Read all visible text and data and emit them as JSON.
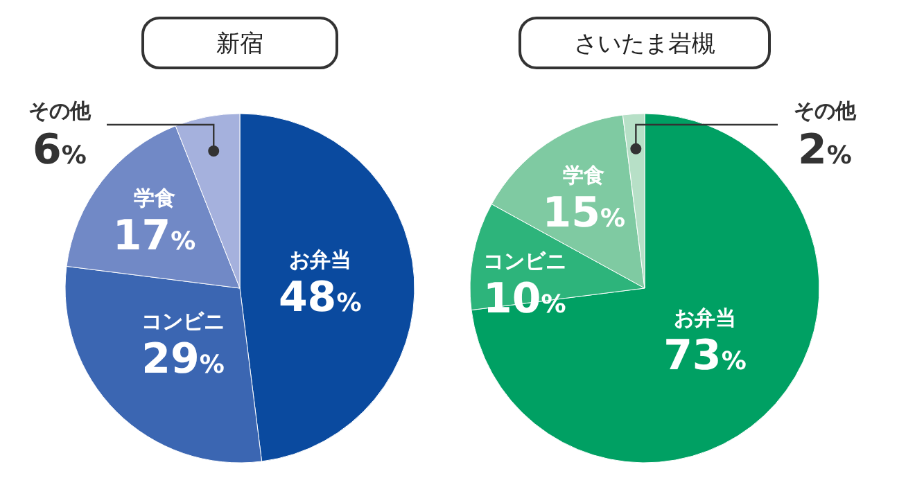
{
  "chart_data": [
    {
      "type": "pie",
      "title": "新宿",
      "categories": [
        "お弁当",
        "コンビニ",
        "学食",
        "その他"
      ],
      "values": [
        48,
        29,
        17,
        6
      ],
      "value_labels": [
        "48%",
        "29%",
        "17%",
        "6%"
      ],
      "colors": [
        "#0a4a9f",
        "#3b66b2",
        "#7189c6",
        "#a5b1dd"
      ]
    },
    {
      "type": "pie",
      "title": "さいたま岩槻",
      "categories": [
        "お弁当",
        "コンビニ",
        "学食",
        "その他"
      ],
      "values": [
        73,
        10,
        15,
        2
      ],
      "value_labels": [
        "73%",
        "10%",
        "15%",
        "2%"
      ],
      "colors": [
        "#00a063",
        "#2db47b",
        "#7fcaa2",
        "#b7e0c7"
      ]
    }
  ]
}
